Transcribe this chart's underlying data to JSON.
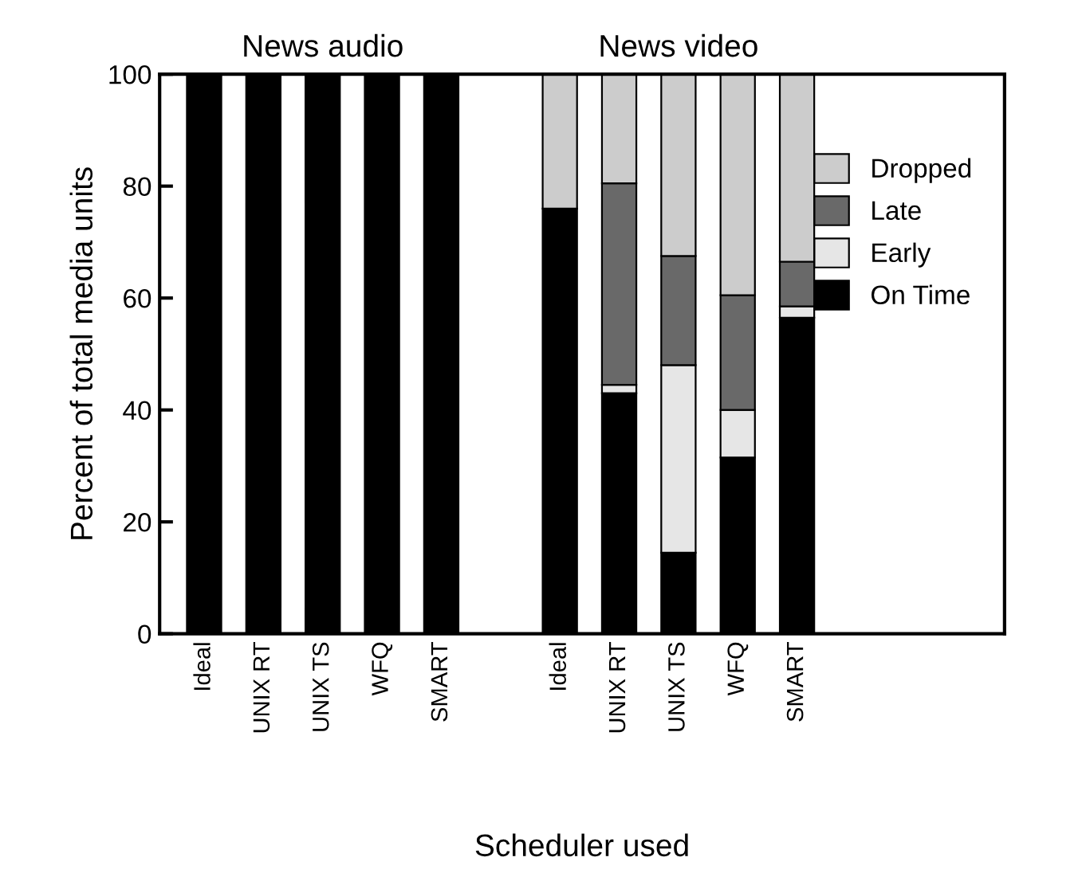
{
  "chart_data": {
    "type": "bar",
    "stacked": true,
    "ylabel": "Percent of total media units",
    "xlabel": "Scheduler used",
    "annotations": [
      "News audio",
      "News video"
    ],
    "categories": [
      "Ideal",
      "UNIX RT",
      "UNIX TS",
      "WFQ",
      "SMART",
      null,
      "Ideal",
      "UNIX RT",
      "UNIX TS",
      "WFQ",
      "SMART",
      null,
      null,
      null
    ],
    "series": [
      {
        "name": "On Time",
        "color": "#000000",
        "values": [
          100,
          100,
          100,
          100,
          100,
          null,
          76,
          43,
          14.5,
          31.5,
          56.5,
          null,
          null,
          null
        ]
      },
      {
        "name": "Early",
        "color": "#e6e6e6",
        "values": [
          null,
          null,
          null,
          null,
          null,
          null,
          null,
          1.5,
          33.5,
          8.5,
          2,
          null,
          null,
          null
        ]
      },
      {
        "name": "Late",
        "color": "#696969",
        "values": [
          null,
          null,
          null,
          null,
          null,
          null,
          null,
          36,
          19.5,
          20.5,
          8,
          null,
          null,
          null
        ]
      },
      {
        "name": "Dropped",
        "color": "#cccccc",
        "values": [
          null,
          null,
          null,
          null,
          null,
          null,
          24,
          19.5,
          32.5,
          39.5,
          33.5,
          null,
          null,
          null
        ]
      }
    ],
    "ylim": [
      0,
      100
    ],
    "yticks": [
      0,
      20,
      40,
      60,
      80,
      100
    ],
    "legend": "top right"
  }
}
